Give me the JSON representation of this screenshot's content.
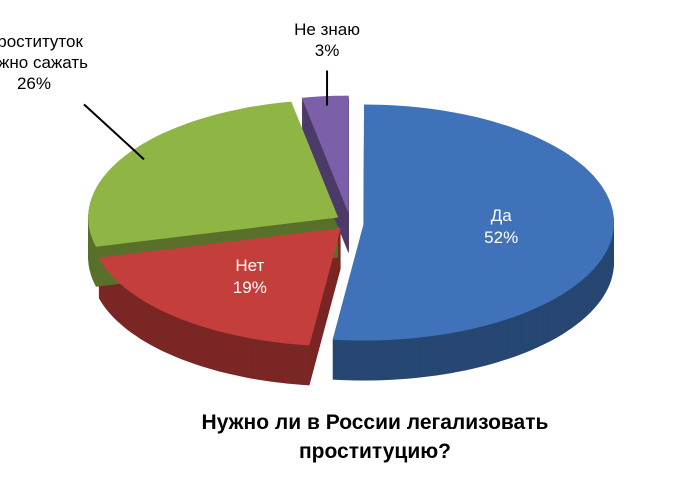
{
  "chart_data": {
    "type": "pie",
    "title": "Нужно ли в России легализовать проституцию?",
    "categories": [
      "Да",
      "Нет",
      "Проституток нужно сажать",
      "Не знаю"
    ],
    "values": [
      52,
      19,
      26,
      3
    ],
    "value_labels": [
      "52%",
      "19%",
      "26%",
      "3%"
    ],
    "colors": [
      "#3f72b8",
      "#c43f3b",
      "#8fb545",
      "#7b5fa9"
    ]
  }
}
